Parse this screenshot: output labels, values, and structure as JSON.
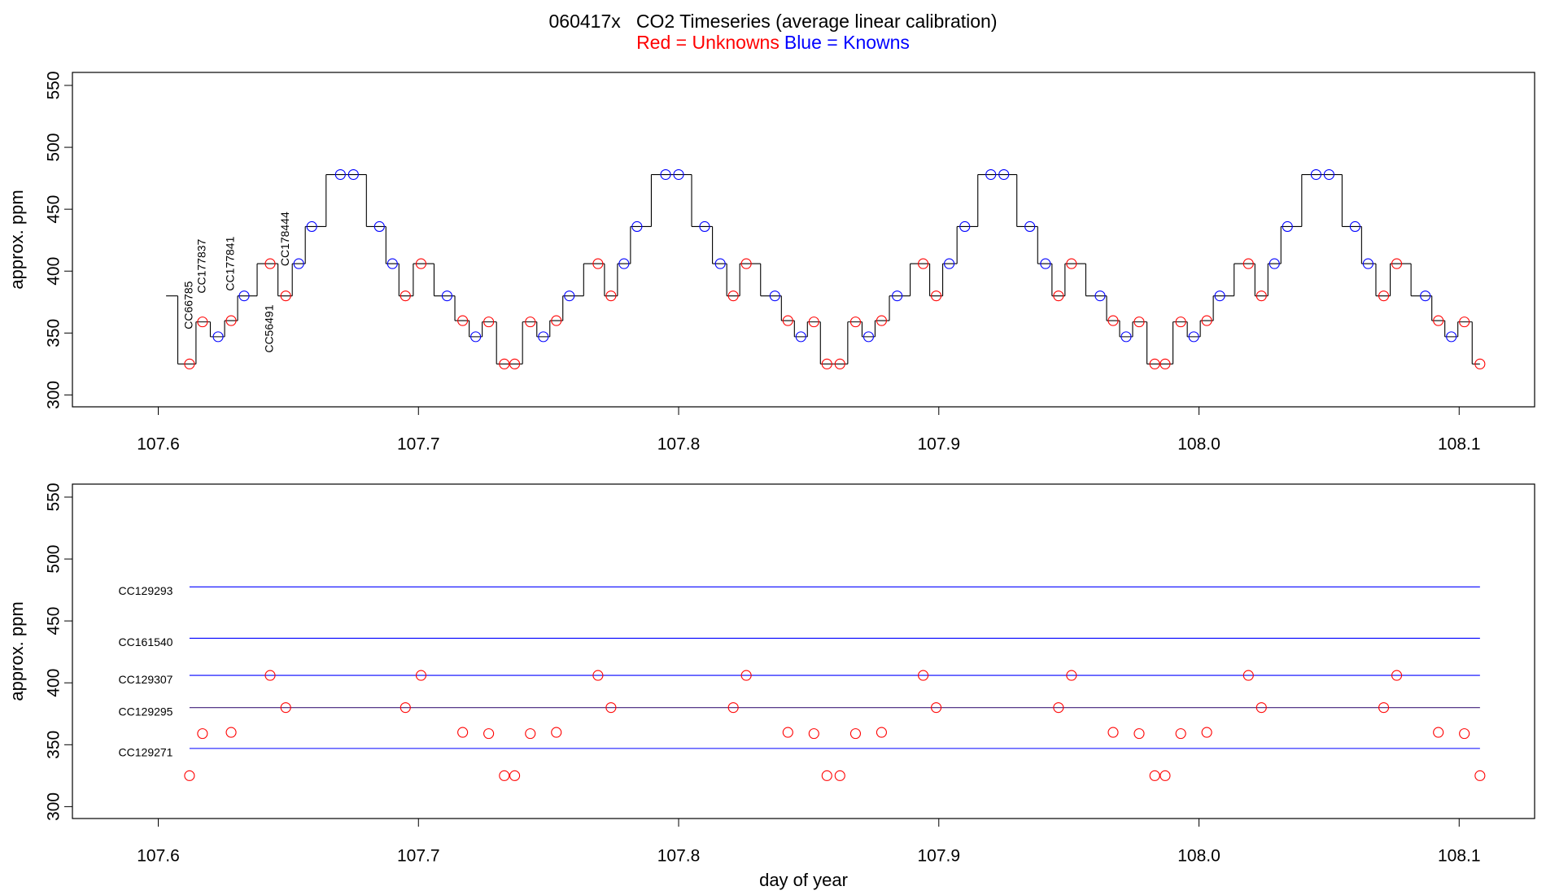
{
  "chart_data": [
    {
      "type": "line",
      "title": "060417x   CO2 Timeseries (average linear calibration)",
      "subtitle": [
        {
          "text": "Red = Unknowns",
          "color": "#ff0000"
        },
        {
          "text": "Blue = Knowns",
          "color": "#0000ff"
        }
      ],
      "ylabel": "approx. ppm",
      "xlim": [
        107.567,
        108.129
      ],
      "ylim": [
        290.4,
        560.5
      ],
      "xticks": [
        107.6,
        107.7,
        107.8,
        107.9,
        {
          "value": 108,
          "label": "108.0"
        },
        108.1
      ],
      "yticks": [
        300,
        350,
        400,
        450,
        500,
        550
      ],
      "trace": {
        "color": "#000000",
        "x": [
          107.603,
          107.612,
          107.617,
          107.623,
          107.628,
          107.633,
          107.643,
          107.649,
          107.654,
          107.659,
          107.67,
          107.675,
          107.685,
          107.69,
          107.695,
          107.701,
          107.711,
          107.717,
          107.722,
          107.727,
          107.733,
          107.737,
          107.743,
          107.748,
          107.753,
          107.758,
          107.769,
          107.774,
          107.779,
          107.784,
          107.795,
          107.8,
          107.81,
          107.816,
          107.821,
          107.826,
          107.837,
          107.842,
          107.847,
          107.852,
          107.857,
          107.862,
          107.868,
          107.873,
          107.878,
          107.884,
          107.894,
          107.899,
          107.904,
          107.91,
          107.92,
          107.925,
          107.935,
          107.941,
          107.946,
          107.951,
          107.962,
          107.967,
          107.972,
          107.977,
          107.983,
          107.987,
          107.993,
          107.998,
          108.003,
          108.008,
          108.019,
          108.024,
          108.029,
          108.034,
          108.045,
          108.05,
          108.06,
          108.065,
          108.071,
          108.076,
          108.087,
          108.092,
          108.097,
          108.102,
          108.108
        ],
        "y": [
          380,
          325,
          359,
          347,
          360,
          380,
          406,
          380,
          406,
          436,
          478,
          478,
          436,
          406,
          380,
          406,
          380,
          360,
          347,
          359,
          325,
          325,
          359,
          347,
          360,
          380,
          406,
          380,
          406,
          436,
          478,
          478,
          436,
          406,
          380,
          406,
          380,
          360,
          347,
          359,
          325,
          325,
          359,
          347,
          360,
          380,
          406,
          380,
          406,
          436,
          478,
          478,
          436,
          406,
          380,
          406,
          380,
          360,
          347,
          359,
          325,
          325,
          359,
          347,
          360,
          380,
          406,
          380,
          406,
          436,
          478,
          478,
          436,
          406,
          380,
          406,
          380,
          360,
          347,
          359,
          325
        ]
      },
      "unknowns": {
        "color": "#ff0000",
        "x": [
          107.612,
          107.617,
          107.628,
          107.643,
          107.649,
          107.695,
          107.701,
          107.717,
          107.727,
          107.733,
          107.737,
          107.743,
          107.753,
          107.769,
          107.774,
          107.821,
          107.826,
          107.842,
          107.852,
          107.857,
          107.862,
          107.868,
          107.878,
          107.894,
          107.899,
          107.946,
          107.951,
          107.967,
          107.977,
          107.983,
          107.987,
          107.993,
          108.003,
          108.019,
          108.024,
          108.071,
          108.076,
          108.092,
          108.102,
          108.108
        ],
        "y": [
          325,
          359,
          360,
          406,
          380,
          380,
          406,
          360,
          359,
          325,
          325,
          359,
          360,
          406,
          380,
          380,
          406,
          360,
          359,
          325,
          325,
          359,
          360,
          406,
          380,
          380,
          406,
          360,
          359,
          325,
          325,
          359,
          360,
          406,
          380,
          380,
          406,
          360,
          359,
          325
        ]
      },
      "knowns": {
        "color": "#0000ff",
        "x": [
          107.623,
          107.633,
          107.654,
          107.659,
          107.67,
          107.675,
          107.685,
          107.69,
          107.711,
          107.722,
          107.748,
          107.758,
          107.779,
          107.784,
          107.795,
          107.8,
          107.81,
          107.816,
          107.837,
          107.847,
          107.873,
          107.884,
          107.904,
          107.91,
          107.92,
          107.925,
          107.935,
          107.941,
          107.962,
          107.972,
          107.998,
          108.008,
          108.029,
          108.034,
          108.045,
          108.05,
          108.06,
          108.065,
          108.087,
          108.097
        ],
        "y": [
          347,
          380,
          406,
          436,
          478,
          478,
          436,
          406,
          380,
          347,
          347,
          380,
          406,
          436,
          478,
          478,
          436,
          406,
          380,
          347,
          347,
          380,
          406,
          436,
          478,
          478,
          436,
          406,
          380,
          347,
          347,
          380,
          406,
          436,
          478,
          478,
          436,
          406,
          380,
          347
        ]
      },
      "annotation_color": "#ff0000",
      "annotations": [
        {
          "text": "CC66785",
          "x": 107.612,
          "y": 353
        },
        {
          "text": "CC177837",
          "x": 107.617,
          "y": 382
        },
        {
          "text": "CC177841",
          "x": 107.628,
          "y": 384
        },
        {
          "text": "CC56491",
          "x": 107.643,
          "y": 334
        },
        {
          "text": "CC178444",
          "x": 107.649,
          "y": 404
        }
      ]
    },
    {
      "type": "scatter",
      "ylabel": "approx. ppm",
      "xlabel": "day of year",
      "xlim": [
        107.567,
        108.129
      ],
      "ylim": [
        290.4,
        560.5
      ],
      "xticks": [
        107.6,
        107.7,
        107.8,
        107.9,
        {
          "value": 108,
          "label": "108.0"
        },
        108.1
      ],
      "yticks": [
        300,
        350,
        400,
        450,
        500,
        550
      ],
      "line_span": [
        107.612,
        108.108
      ],
      "reference_lines": [
        {
          "name": "CC129293",
          "value": 477.5,
          "color": "#0000ff"
        },
        {
          "name": "CC161540",
          "value": 436,
          "color": "#0000ff"
        },
        {
          "name": "CC129307",
          "value": 406,
          "color": "#0000ff"
        },
        {
          "name": "CC129295",
          "value": 380,
          "color": "#40207a"
        },
        {
          "name": "CC129271",
          "value": 347,
          "color": "#0000ff"
        }
      ],
      "label_color": "#0000ff",
      "unknowns": {
        "color": "#ff0000",
        "x": [
          107.612,
          107.617,
          107.628,
          107.643,
          107.649,
          107.695,
          107.701,
          107.717,
          107.727,
          107.733,
          107.737,
          107.743,
          107.753,
          107.769,
          107.774,
          107.821,
          107.826,
          107.842,
          107.852,
          107.857,
          107.862,
          107.868,
          107.878,
          107.894,
          107.899,
          107.946,
          107.951,
          107.967,
          107.977,
          107.983,
          107.987,
          107.993,
          108.003,
          108.019,
          108.024,
          108.071,
          108.076,
          108.092,
          108.102,
          108.108
        ],
        "y": [
          325,
          359,
          360,
          406,
          380,
          380,
          406,
          360,
          359,
          325,
          325,
          359,
          360,
          406,
          380,
          380,
          406,
          360,
          359,
          325,
          325,
          359,
          360,
          406,
          380,
          380,
          406,
          360,
          359,
          325,
          325,
          359,
          360,
          406,
          380,
          380,
          406,
          360,
          359,
          325
        ]
      }
    }
  ]
}
